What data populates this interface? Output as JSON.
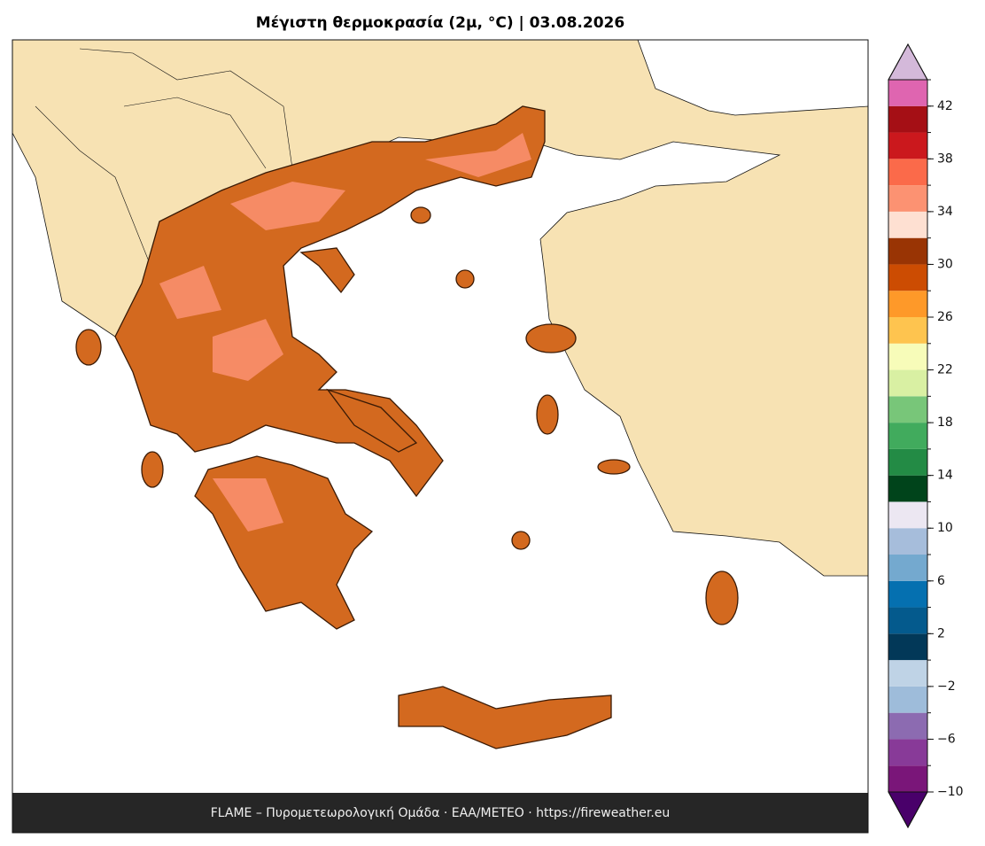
{
  "chart_data": {
    "type": "colormap",
    "title": "Μέγιστη θερμοκρασία (2μ, °C)  |  03.08.2026",
    "footer": "FLAME – Πυρομετεωρολογική Ομάδα · ΕΑΑ/METEO · https://fireweather.eu",
    "colorbar": {
      "levels": [
        -10,
        -8,
        -6,
        -4,
        -2,
        0,
        2,
        4,
        6,
        8,
        10,
        12,
        14,
        16,
        18,
        20,
        22,
        24,
        26,
        28,
        30,
        32,
        34,
        36,
        38,
        40,
        42,
        44
      ],
      "colors": [
        "#7a1679",
        "#883a98",
        "#8c6bb1",
        "#9ebcda",
        "#bfd3e6",
        "#023858",
        "#045a8d",
        "#0570b0",
        "#74a9cf",
        "#a6bddb",
        "#ece7f2",
        "#00441b",
        "#238b45",
        "#41ab5d",
        "#78c679",
        "#d9f0a3",
        "#f7fcb9",
        "#fec44f",
        "#fe9929",
        "#cc4c02",
        "#993404",
        "#fee0d2",
        "#fc9272",
        "#fb6a4a",
        "#cb181d",
        "#a50f15",
        "#df65b0"
      ],
      "under_color": "#49006a",
      "over_color": "#d4b9da",
      "ticks": [
        {
          "value": -10,
          "label": "−10"
        },
        {
          "value": -6,
          "label": "−6"
        },
        {
          "value": -2,
          "label": "−2"
        },
        2,
        6,
        10,
        14,
        18,
        22,
        26,
        30,
        34,
        38,
        42
      ]
    }
  }
}
